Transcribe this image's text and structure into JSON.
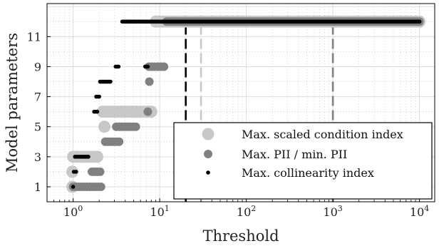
{
  "chart_data": {
    "type": "scatter",
    "xlabel": "Threshold",
    "ylabel": "Model parameters",
    "xscale": "log",
    "xlim": [
      0.5,
      15000
    ],
    "ylim": [
      0,
      13.2
    ],
    "grid": true,
    "legend_position": "bottom-right",
    "x_ticks": [
      {
        "value": 1,
        "base": "10",
        "exp": "0"
      },
      {
        "value": 10,
        "base": "10",
        "exp": "1"
      },
      {
        "value": 100,
        "base": "10",
        "exp": "2"
      },
      {
        "value": 1000,
        "base": "10",
        "exp": "3"
      },
      {
        "value": 10000,
        "base": "10",
        "exp": "4"
      }
    ],
    "y_ticks": [
      {
        "value": 1,
        "label": "1"
      },
      {
        "value": 3,
        "label": "3"
      },
      {
        "value": 5,
        "label": "5"
      },
      {
        "value": 7,
        "label": "7"
      },
      {
        "value": 9,
        "label": "9"
      },
      {
        "value": 11,
        "label": "11"
      }
    ],
    "series": [
      {
        "name": "Max. scaled condition index",
        "color": "#c8c8c8",
        "marker_size": "large",
        "segments": [
          {
            "y": 1,
            "x_start": 0.98,
            "x_end": 1.05
          },
          {
            "y": 2,
            "x_start": 0.98,
            "x_end": 1.05
          },
          {
            "y": 3,
            "x_start": 1.0,
            "x_end": 1.9
          },
          {
            "y": 5,
            "x_start": 2.3,
            "x_end": 2.3
          },
          {
            "y": 6,
            "x_start": 2.2,
            "x_end": 8.0
          },
          {
            "y": 12,
            "x_start": 9.0,
            "x_end": 10000
          }
        ]
      },
      {
        "name": "Max. PII / min. PII",
        "color": "#808080",
        "marker_size": "medium",
        "segments": [
          {
            "y": 1,
            "x_start": 1.0,
            "x_end": 2.1
          },
          {
            "y": 2,
            "x_start": 1.65,
            "x_end": 2.05
          },
          {
            "y": 4,
            "x_start": 2.35,
            "x_end": 3.4
          },
          {
            "y": 5,
            "x_start": 3.15,
            "x_end": 5.3
          },
          {
            "y": 6,
            "x_start": 7.3,
            "x_end": 7.3
          },
          {
            "y": 8,
            "x_start": 7.6,
            "x_end": 7.6
          },
          {
            "y": 9,
            "x_start": 7.5,
            "x_end": 11.2
          },
          {
            "y": 12,
            "x_start": 12.0,
            "x_end": 10000
          }
        ]
      },
      {
        "name": "Max. collinearity index",
        "color": "#000000",
        "marker_size": "small",
        "segments": [
          {
            "y": 1,
            "x_start": 1.0,
            "x_end": 1.0
          },
          {
            "y": 2,
            "x_start": 1.02,
            "x_end": 1.08
          },
          {
            "y": 3,
            "x_start": 1.05,
            "x_end": 1.5
          },
          {
            "y": 6,
            "x_start": 1.75,
            "x_end": 1.9
          },
          {
            "y": 7,
            "x_start": 1.85,
            "x_end": 2.0
          },
          {
            "y": 8,
            "x_start": 2.05,
            "x_end": 2.7
          },
          {
            "y": 9,
            "x_start": 3.1,
            "x_end": 3.35
          },
          {
            "y": 9,
            "x_start": 6.8,
            "x_end": 7.3
          },
          {
            "y": 12,
            "x_start": 3.7,
            "x_end": 10000
          }
        ]
      }
    ],
    "vertical_lines": [
      {
        "x": 20,
        "color": "#000000",
        "dash": "long"
      },
      {
        "x": 30,
        "color": "#c8c8c8",
        "dash": "long"
      },
      {
        "x": 1000,
        "color": "#808080",
        "dash": "long"
      }
    ]
  }
}
